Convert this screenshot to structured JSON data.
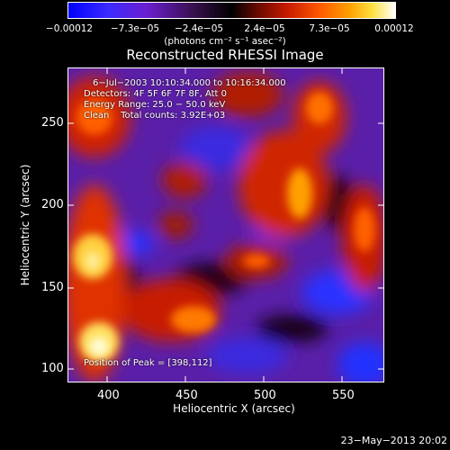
{
  "colorbar": {
    "ticks": [
      "−0.00012",
      "−7.3e−05",
      "−2.4e−05",
      "2.4e−05",
      "7.3e−05",
      "0.00012"
    ],
    "units": "(photons cm⁻² s⁻¹ asec⁻²)"
  },
  "title": "Reconstructed RHESSI Image",
  "info": {
    "line1": "6−Jul−2003 10:10:34.000 to 10:16:34.000",
    "line2": "Detectors: 4F 5F 6F 7F 8F, Att 0",
    "line3": "Energy Range: 25.0 − 50.0 keV",
    "line4": "Clean    Total counts: 3.92E+03"
  },
  "peak_text": "Position of Peak = [398,112]",
  "axes": {
    "x_ticks": [
      "400",
      "450",
      "500",
      "550"
    ],
    "y_ticks": [
      "100",
      "150",
      "200",
      "250"
    ],
    "x_label": "Heliocentric X (arcsec)",
    "y_label": "Heliocentric Y (arcsec)",
    "xlim": [
      380,
      572
    ],
    "ylim": [
      92,
      284
    ]
  },
  "timestamp": "23−May−2013 20:02"
}
